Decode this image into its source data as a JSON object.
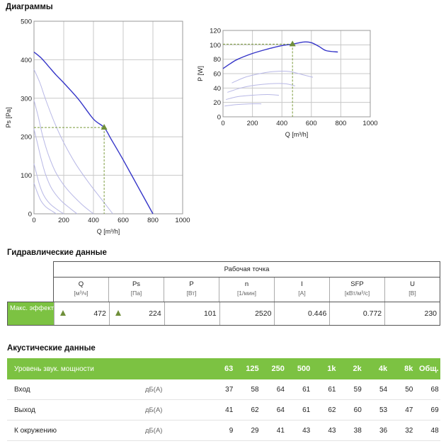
{
  "sections": {
    "diagrams": "Диаграммы",
    "hydraulic": "Гидравлические данные",
    "acoustic": "Акустические данные"
  },
  "chart_data": [
    {
      "type": "line",
      "xlabel": "Q [m³/h]",
      "ylabel": "Ps [Pa]",
      "xlim": [
        0,
        1000
      ],
      "ylim": [
        0,
        500
      ],
      "xticks": [
        0,
        200,
        400,
        600,
        800,
        1000
      ],
      "yticks": [
        0,
        100,
        200,
        300,
        400,
        500
      ],
      "grid": true,
      "main_curve": [
        [
          0,
          420
        ],
        [
          50,
          404
        ],
        [
          100,
          382
        ],
        [
          150,
          360
        ],
        [
          200,
          340
        ],
        [
          300,
          297
        ],
        [
          400,
          246
        ],
        [
          472,
          224
        ],
        [
          520,
          193
        ],
        [
          600,
          140
        ],
        [
          700,
          70
        ],
        [
          800,
          0
        ]
      ],
      "reduced_curves": [
        [
          [
            0,
            375
          ],
          [
            40,
            340
          ],
          [
            80,
            295
          ],
          [
            140,
            235
          ],
          [
            200,
            185
          ],
          [
            280,
            130
          ],
          [
            370,
            80
          ],
          [
            470,
            30
          ],
          [
            530,
            0
          ]
        ],
        [
          [
            0,
            295
          ],
          [
            30,
            250
          ],
          [
            60,
            200
          ],
          [
            100,
            150
          ],
          [
            150,
            105
          ],
          [
            220,
            65
          ],
          [
            320,
            25
          ],
          [
            400,
            0
          ]
        ],
        [
          [
            0,
            220
          ],
          [
            25,
            180
          ],
          [
            50,
            140
          ],
          [
            80,
            100
          ],
          [
            120,
            65
          ],
          [
            180,
            35
          ],
          [
            250,
            12
          ],
          [
            290,
            0
          ]
        ],
        [
          [
            0,
            130
          ],
          [
            20,
            100
          ],
          [
            40,
            72
          ],
          [
            70,
            45
          ],
          [
            110,
            25
          ],
          [
            160,
            10
          ],
          [
            200,
            0
          ]
        ],
        [
          [
            0,
            80
          ],
          [
            20,
            58
          ],
          [
            45,
            35
          ],
          [
            80,
            18
          ],
          [
            130,
            5
          ],
          [
            150,
            0
          ]
        ]
      ],
      "operating_point": {
        "x": 472,
        "y": 224
      }
    },
    {
      "type": "line",
      "xlabel": "Q [m³/h]",
      "ylabel": "P [W]",
      "xlim": [
        0,
        1000
      ],
      "ylim": [
        0,
        120
      ],
      "xticks": [
        0,
        200,
        400,
        600,
        800,
        1000
      ],
      "yticks": [
        0,
        20,
        40,
        60,
        80,
        100,
        120
      ],
      "grid": true,
      "main_curve": [
        [
          0,
          67
        ],
        [
          50,
          74
        ],
        [
          100,
          80
        ],
        [
          200,
          88
        ],
        [
          300,
          94
        ],
        [
          400,
          99
        ],
        [
          472,
          101
        ],
        [
          550,
          104
        ],
        [
          600,
          103
        ],
        [
          650,
          98
        ],
        [
          700,
          92
        ],
        [
          780,
          90
        ]
      ],
      "reduced_curves": [
        [
          [
            60,
            47
          ],
          [
            150,
            55
          ],
          [
            250,
            60
          ],
          [
            350,
            63
          ],
          [
            450,
            63
          ],
          [
            550,
            58
          ],
          [
            610,
            55
          ]
        ],
        [
          [
            30,
            34
          ],
          [
            120,
            40
          ],
          [
            220,
            44
          ],
          [
            320,
            46
          ],
          [
            420,
            46
          ],
          [
            490,
            43
          ]
        ],
        [
          [
            20,
            24
          ],
          [
            100,
            28
          ],
          [
            200,
            30
          ],
          [
            300,
            31
          ],
          [
            380,
            30
          ]
        ],
        [
          [
            10,
            15
          ],
          [
            90,
            17
          ],
          [
            180,
            18
          ],
          [
            260,
            18
          ]
        ]
      ],
      "operating_point": {
        "x": 472,
        "y": 101
      }
    }
  ],
  "hydraulic": {
    "group_header": "Рабочая точка",
    "row_label": "Макс. эффективность",
    "columns": [
      {
        "name": "Q",
        "unit": "[м³/ч]",
        "value": "472",
        "marker": true
      },
      {
        "name": "Ps",
        "unit": "[Па]",
        "value": "224",
        "marker": true
      },
      {
        "name": "P",
        "unit": "[Вт]",
        "value": "101",
        "marker": false
      },
      {
        "name": "n",
        "unit": "[1/мин]",
        "value": "2520",
        "marker": false
      },
      {
        "name": "I",
        "unit": "[А]",
        "value": "0.446",
        "marker": false
      },
      {
        "name": "SFP",
        "unit": "[кВт/м³/с]",
        "value": "0.772",
        "marker": false
      },
      {
        "name": "U",
        "unit": "[В]",
        "value": "230",
        "marker": false
      }
    ]
  },
  "acoustic": {
    "header_label": "Уровень звук. мощности",
    "bands": [
      "63",
      "125",
      "250",
      "500",
      "1k",
      "2k",
      "4k",
      "8k",
      "Общ."
    ],
    "rows": [
      {
        "name": "Вход",
        "unit": "дБ(A)",
        "values": [
          "37",
          "58",
          "64",
          "61",
          "61",
          "59",
          "54",
          "50",
          "68"
        ]
      },
      {
        "name": "Выход",
        "unit": "дБ(A)",
        "values": [
          "41",
          "62",
          "64",
          "61",
          "62",
          "60",
          "53",
          "47",
          "69"
        ]
      },
      {
        "name": "К окружению",
        "unit": "дБ(A)",
        "values": [
          "9",
          "29",
          "41",
          "43",
          "43",
          "38",
          "36",
          "32",
          "48"
        ]
      }
    ]
  },
  "colors": {
    "main_curve": "#3535c8",
    "reduced_curve": "#b8b8e6",
    "operating_point": "#6f8f3a",
    "guide_line": "#7a9a3a",
    "grid": "#c8c8c8",
    "accent_green": "#7cc242"
  }
}
